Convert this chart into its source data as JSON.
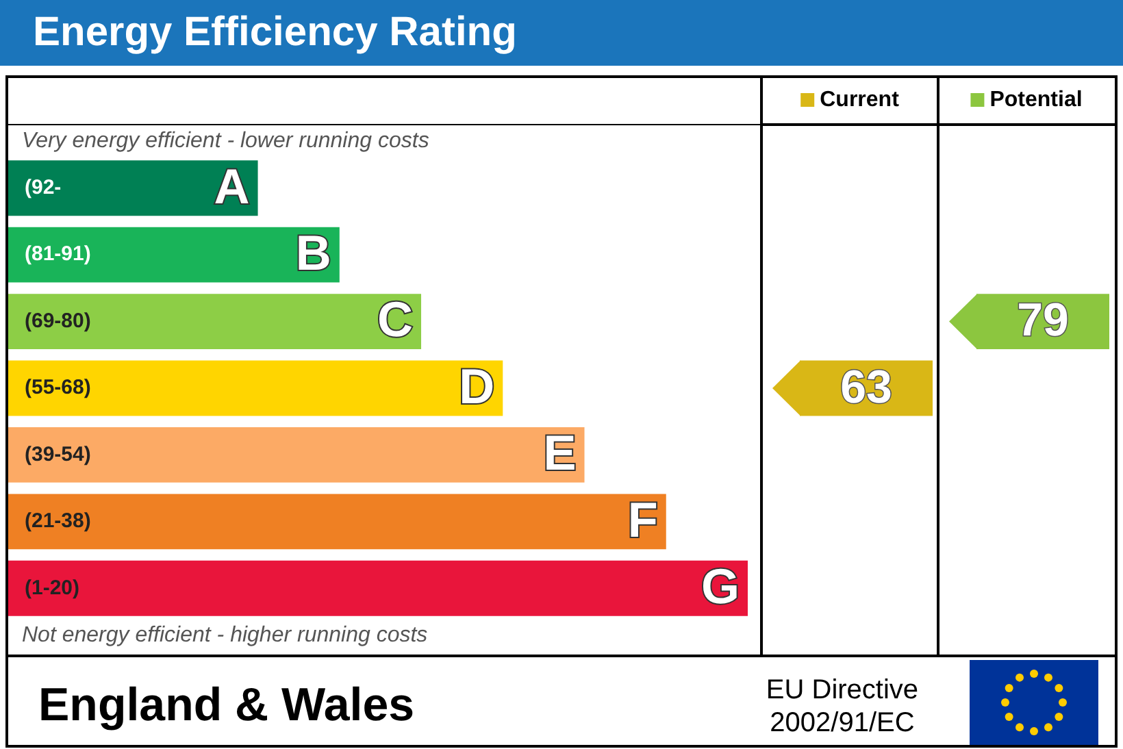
{
  "chart_data": {
    "type": "other",
    "title": "Energy Efficiency Rating",
    "categories": [
      "(92-",
      "(81-91)",
      "(69-80)",
      "(55-68)",
      "(39-54)",
      "(21-38)",
      "(1-20)"
    ],
    "value_labels": [
      "A",
      "B",
      "C",
      "D",
      "E",
      "F",
      "G"
    ],
    "data_labels": true,
    "legend": "top right",
    "colors": [
      "#008054",
      "#19b459",
      "#8dce46",
      "#ffd500",
      "#fcaa65",
      "#ef8023",
      "#e9153b"
    ],
    "series": [
      {
        "name": "Current",
        "color": "#d9b716",
        "values": [
          null,
          null,
          null,
          63,
          null,
          null,
          null
        ]
      },
      {
        "name": "Potential",
        "color": "#8cc63f",
        "values": [
          null,
          null,
          79,
          null,
          null,
          null,
          null
        ]
      }
    ],
    "annotations": [
      "Very energy efficient - lower running costs",
      "Not energy efficient - higher running costs",
      "England & Wales",
      "EU Directive 2002/91/EC"
    ]
  }
}
